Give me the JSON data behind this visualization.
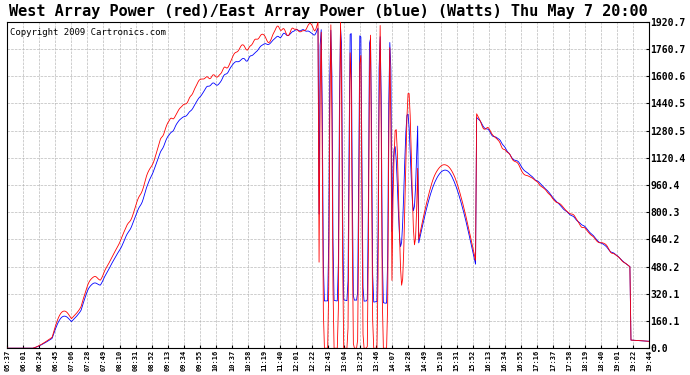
{
  "title": "West Array Power (red)/East Array Power (blue) (Watts) Thu May 7 20:00",
  "copyright": "Copyright 2009 Cartronics.com",
  "x_ticks": [
    "05:37",
    "06:01",
    "06:24",
    "06:45",
    "07:06",
    "07:28",
    "07:49",
    "08:10",
    "08:31",
    "08:52",
    "09:13",
    "09:34",
    "09:55",
    "10:16",
    "10:37",
    "10:58",
    "11:19",
    "11:40",
    "12:01",
    "12:22",
    "12:43",
    "13:04",
    "13:25",
    "13:46",
    "14:07",
    "14:28",
    "14:49",
    "15:10",
    "15:31",
    "15:52",
    "16:13",
    "16:34",
    "16:55",
    "17:16",
    "17:37",
    "17:58",
    "18:19",
    "18:40",
    "19:01",
    "19:22",
    "19:44"
  ],
  "y_ticks": [
    0.0,
    160.1,
    320.1,
    480.2,
    640.2,
    800.3,
    960.4,
    1120.4,
    1280.5,
    1440.5,
    1600.6,
    1760.7,
    1920.7
  ],
  "y_min": 0.0,
  "y_max": 1920.7,
  "background_color": "#ffffff",
  "grid_color": "#aaaaaa",
  "line_red_color": "#ff0000",
  "line_blue_color": "#0000ff",
  "title_fontsize": 11,
  "copyright_fontsize": 6.5
}
